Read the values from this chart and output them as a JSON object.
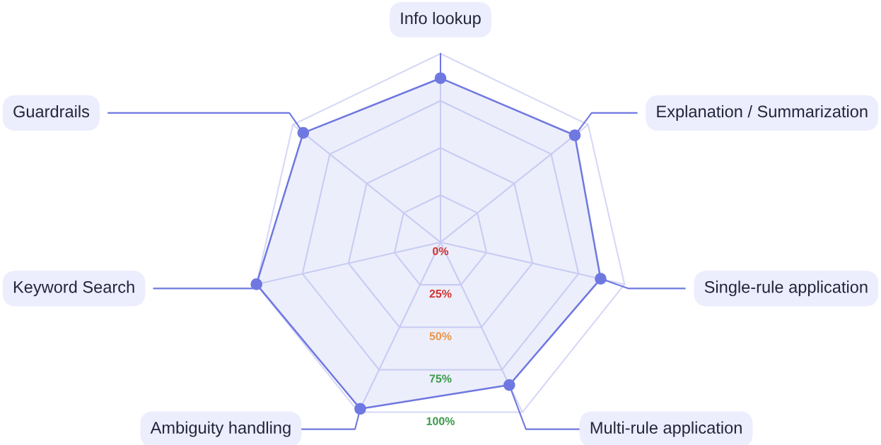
{
  "chart_data": {
    "type": "radar",
    "categories": [
      "Info lookup",
      "Explanation / Summarization",
      "Single-rule application",
      "Multi-rule application",
      "Ambiguity handling",
      "Keyword Search",
      "Guardrails"
    ],
    "series": [
      {
        "color": "#6f78e0",
        "values": [
          87,
          91,
          87,
          84,
          98,
          100,
          93
        ]
      }
    ],
    "ylim": [
      0,
      100
    ],
    "yticks": [
      {
        "value": 0,
        "label": "0%"
      },
      {
        "value": 25,
        "label": "25%"
      },
      {
        "value": 50,
        "label": "50%"
      },
      {
        "value": 75,
        "label": "75%"
      },
      {
        "value": 100,
        "label": "100%"
      }
    ],
    "grid": true,
    "marker": "circle",
    "line_style": "solid"
  }
}
